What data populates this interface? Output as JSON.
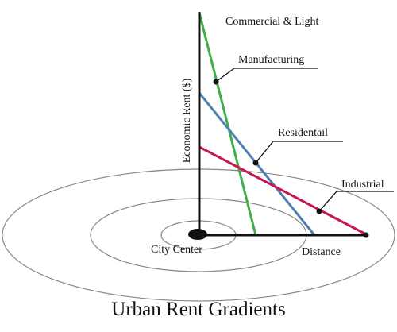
{
  "title": "Urban Rent Gradients",
  "y_axis_label": "Economic Rent ($)",
  "x_axis_label": "Distance",
  "origin_label": "City Center",
  "lines": [
    {
      "id": "commercial",
      "label": "Commercial & Light",
      "color": "#3fae49"
    },
    {
      "id": "manufacturing",
      "label": "Manufacturing",
      "color": "#3fae49"
    },
    {
      "id": "residential",
      "label": "Residentail",
      "color": "#4f7fb0"
    },
    {
      "id": "industrial",
      "label": "Industrial",
      "color": "#c8174f"
    }
  ],
  "colors": {
    "axis": "#111111",
    "rings": "#888888"
  }
}
